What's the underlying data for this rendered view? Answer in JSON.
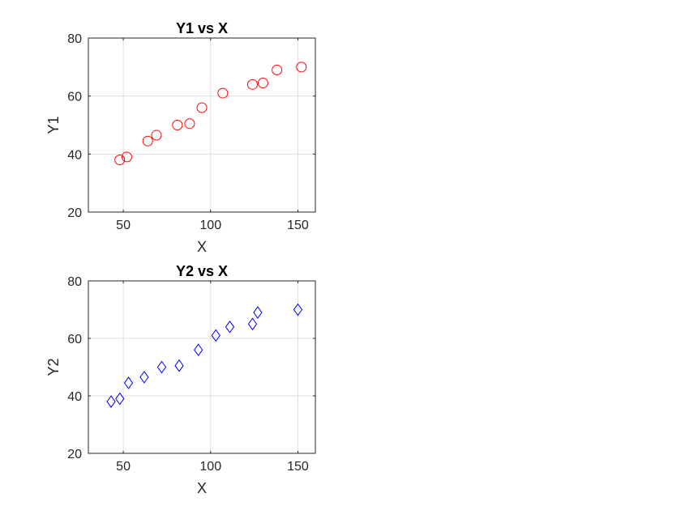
{
  "chart_data": [
    {
      "type": "scatter",
      "title": "Y1 vs X",
      "xlabel": "X",
      "ylabel": "Y1",
      "xlim": [
        30,
        160
      ],
      "ylim": [
        20,
        80
      ],
      "xticks": [
        50,
        100,
        150
      ],
      "yticks": [
        20,
        40,
        60,
        80
      ],
      "grid": true,
      "marker": "circle",
      "color": "#ff0000",
      "x": [
        48,
        52,
        64,
        69,
        81,
        88,
        95,
        107,
        124,
        130,
        138,
        152
      ],
      "y": [
        38,
        39,
        44.5,
        46.5,
        50,
        50.5,
        56,
        61,
        64,
        64.5,
        69,
        70
      ]
    },
    {
      "type": "scatter",
      "title": "Y2 vs X",
      "xlabel": "X",
      "ylabel": "Y2",
      "xlim": [
        30,
        160
      ],
      "ylim": [
        20,
        80
      ],
      "xticks": [
        50,
        100,
        150
      ],
      "yticks": [
        20,
        40,
        60,
        80
      ],
      "grid": true,
      "marker": "diamond",
      "color": "#0000ff",
      "x": [
        43,
        48,
        53,
        62,
        72,
        82,
        93,
        103,
        111,
        124,
        127,
        150
      ],
      "y": [
        38,
        39,
        44.5,
        46.5,
        50,
        50.5,
        56,
        61,
        64,
        65,
        69,
        70
      ]
    }
  ]
}
